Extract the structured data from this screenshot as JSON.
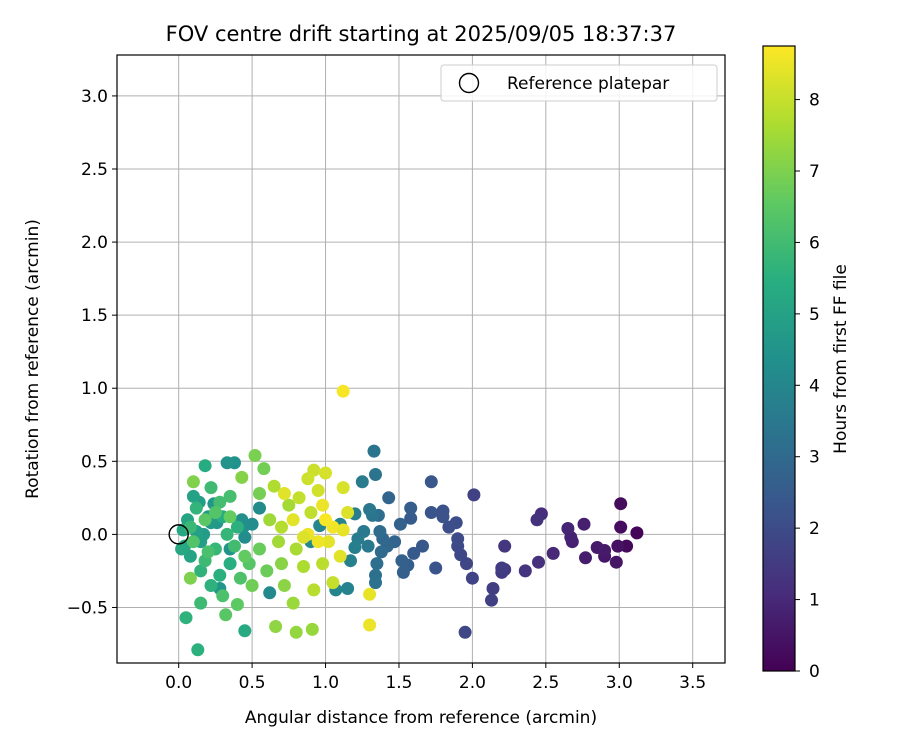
{
  "chart_data": {
    "type": "scatter",
    "title": "FOV centre drift starting at 2025/09/05 18:37:37",
    "xlabel": "Angular distance from reference (arcmin)",
    "ylabel": "Rotation from reference (arcmin)",
    "xlim": [
      -0.42,
      3.72
    ],
    "ylim": [
      -0.88,
      3.28
    ],
    "x_ticks": [
      0.0,
      0.5,
      1.0,
      1.5,
      2.0,
      2.5,
      3.0,
      3.5
    ],
    "x_tick_labels": [
      "0.0",
      "0.5",
      "1.0",
      "1.5",
      "2.0",
      "2.5",
      "3.0",
      "3.5"
    ],
    "y_ticks": [
      -0.5,
      0.0,
      0.5,
      1.0,
      1.5,
      2.0,
      2.5,
      3.0
    ],
    "y_tick_labels": [
      "−0.5",
      "0.0",
      "0.5",
      "1.0",
      "1.5",
      "2.0",
      "2.5",
      "3.0"
    ],
    "grid": true,
    "legend": {
      "position": "upper-right",
      "entries": [
        {
          "label": "Reference platepar",
          "marker": "open-circle",
          "x": 0.0,
          "y": 0.0
        }
      ]
    },
    "colorbar": {
      "label": "Hours from first FF file",
      "range": [
        0,
        8.75
      ],
      "ticks": [
        0,
        1,
        2,
        3,
        4,
        5,
        6,
        7,
        8
      ],
      "tick_labels": [
        "0",
        "1",
        "2",
        "3",
        "4",
        "5",
        "6",
        "7",
        "8"
      ],
      "colormap": "viridis",
      "colormap_stops": [
        "#440154",
        "#472d7b",
        "#3b528b",
        "#2c728e",
        "#21918c",
        "#28ae80",
        "#5ec962",
        "#addc30",
        "#fde725"
      ]
    },
    "series": [
      {
        "points": [
          [
            3.12,
            0.01,
            0.1
          ],
          [
            3.05,
            -0.08,
            0.2
          ],
          [
            3.01,
            0.05,
            0.3
          ],
          [
            3.01,
            0.21,
            0.25
          ],
          [
            2.99,
            -0.08,
            0.4
          ],
          [
            2.98,
            -0.19,
            0.5
          ],
          [
            2.9,
            -0.15,
            0.55
          ],
          [
            2.9,
            -0.11,
            0.6
          ],
          [
            2.85,
            -0.09,
            0.65
          ],
          [
            2.77,
            -0.16,
            0.7
          ],
          [
            2.76,
            0.07,
            0.75
          ],
          [
            2.68,
            -0.05,
            0.8
          ],
          [
            2.67,
            -0.02,
            0.85
          ],
          [
            2.65,
            0.04,
            0.9
          ],
          [
            2.55,
            -0.13,
            1.0
          ],
          [
            2.47,
            0.14,
            1.1
          ],
          [
            2.45,
            -0.19,
            1.2
          ],
          [
            2.44,
            0.1,
            1.25
          ],
          [
            2.36,
            -0.25,
            1.3
          ],
          [
            2.22,
            -0.08,
            1.4
          ],
          [
            2.22,
            -0.24,
            1.45
          ],
          [
            2.2,
            -0.26,
            1.5
          ],
          [
            2.2,
            -0.23,
            1.55
          ],
          [
            2.14,
            -0.37,
            1.6
          ],
          [
            2.13,
            -0.45,
            1.65
          ],
          [
            2.01,
            0.27,
            1.7
          ],
          [
            2.0,
            -0.3,
            1.75
          ],
          [
            1.96,
            -0.2,
            1.8
          ],
          [
            1.95,
            -0.67,
            1.85
          ],
          [
            1.92,
            -0.14,
            1.9
          ],
          [
            1.9,
            -0.08,
            1.95
          ],
          [
            1.9,
            -0.03,
            2.0
          ],
          [
            1.89,
            0.08,
            2.05
          ],
          [
            1.84,
            0.05,
            2.1
          ],
          [
            1.8,
            0.16,
            2.15
          ],
          [
            1.8,
            0.12,
            2.2
          ],
          [
            1.75,
            -0.23,
            2.25
          ],
          [
            1.72,
            0.15,
            2.3
          ],
          [
            1.72,
            0.36,
            2.35
          ],
          [
            1.66,
            -0.08,
            2.4
          ],
          [
            1.6,
            -0.13,
            2.45
          ],
          [
            1.58,
            0.11,
            2.5
          ],
          [
            1.58,
            0.18,
            2.55
          ],
          [
            1.56,
            -0.21,
            2.6
          ],
          [
            1.53,
            -0.26,
            2.65
          ],
          [
            1.52,
            -0.18,
            2.7
          ],
          [
            1.51,
            0.07,
            2.75
          ],
          [
            1.47,
            -0.05,
            2.8
          ],
          [
            1.43,
            0.25,
            2.85
          ],
          [
            1.42,
            -0.08,
            2.9
          ],
          [
            1.39,
            -0.03,
            2.95
          ],
          [
            1.38,
            -0.12,
            3.0
          ],
          [
            1.37,
            0.02,
            3.05
          ],
          [
            1.36,
            0.13,
            3.1
          ],
          [
            1.35,
            -0.2,
            3.15
          ],
          [
            1.34,
            -0.28,
            3.2
          ],
          [
            1.34,
            -0.33,
            3.25
          ],
          [
            1.34,
            0.41,
            3.3
          ],
          [
            1.33,
            0.57,
            3.35
          ],
          [
            1.32,
            0.13,
            3.4
          ],
          [
            1.3,
            0.17,
            3.45
          ],
          [
            1.29,
            -0.08,
            3.5
          ],
          [
            1.26,
            0.02,
            3.55
          ],
          [
            1.25,
            0.36,
            3.6
          ],
          [
            1.22,
            -0.03,
            3.65
          ],
          [
            1.2,
            0.14,
            3.7
          ],
          [
            1.2,
            -0.09,
            3.75
          ],
          [
            1.17,
            -0.18,
            3.8
          ],
          [
            1.15,
            -0.37,
            3.85
          ],
          [
            1.1,
            0.07,
            3.9
          ],
          [
            1.07,
            -0.38,
            3.95
          ],
          [
            0.96,
            0.06,
            4.0
          ],
          [
            0.9,
            -0.05,
            4.05
          ],
          [
            0.62,
            -0.4,
            4.1
          ],
          [
            0.55,
            0.18,
            4.15
          ],
          [
            0.5,
            0.07,
            4.2
          ],
          [
            0.45,
            -0.02,
            4.25
          ],
          [
            0.44,
            0.05,
            4.3
          ],
          [
            0.43,
            0.1,
            4.35
          ],
          [
            0.38,
            0.49,
            4.4
          ],
          [
            0.35,
            -0.1,
            4.45
          ],
          [
            0.33,
            0.49,
            4.5
          ],
          [
            0.28,
            -0.37,
            4.55
          ],
          [
            0.26,
            0.08,
            4.6
          ],
          [
            0.24,
            0.21,
            4.65
          ],
          [
            0.22,
            0.08,
            4.7
          ],
          [
            0.2,
            0.12,
            4.75
          ],
          [
            0.17,
            0.0,
            4.8
          ],
          [
            0.15,
            -0.05,
            4.85
          ],
          [
            0.14,
            0.22,
            4.9
          ],
          [
            0.12,
            0.02,
            4.95
          ],
          [
            0.1,
            0.26,
            5.0
          ],
          [
            0.08,
            -0.15,
            5.05
          ],
          [
            0.06,
            0.1,
            5.1
          ],
          [
            0.04,
            -0.08,
            5.15
          ],
          [
            0.03,
            0.03,
            5.2
          ],
          [
            0.02,
            -0.1,
            5.25
          ],
          [
            0.45,
            -0.66,
            5.3
          ],
          [
            0.18,
            0.47,
            5.35
          ],
          [
            0.3,
            0.12,
            5.4
          ],
          [
            0.35,
            -0.2,
            5.45
          ],
          [
            0.28,
            -0.28,
            5.5
          ],
          [
            0.4,
            0.05,
            5.55
          ],
          [
            0.22,
            -0.35,
            5.6
          ],
          [
            0.15,
            -0.25,
            5.65
          ],
          [
            0.12,
            0.18,
            5.7
          ],
          [
            0.33,
            0.0,
            5.75
          ],
          [
            0.25,
            -0.1,
            5.8
          ],
          [
            0.08,
            0.05,
            5.85
          ],
          [
            0.18,
            -0.18,
            5.9
          ],
          [
            0.22,
            0.32,
            5.95
          ],
          [
            0.38,
            -0.08,
            6.0
          ],
          [
            0.05,
            -0.57,
            5.6
          ],
          [
            0.13,
            -0.79,
            5.55
          ],
          [
            0.15,
            -0.47,
            5.9
          ],
          [
            0.28,
            0.22,
            6.05
          ],
          [
            0.35,
            0.26,
            6.1
          ],
          [
            0.2,
            -0.12,
            6.15
          ],
          [
            0.3,
            -0.42,
            6.2
          ],
          [
            0.42,
            -0.3,
            6.25
          ],
          [
            0.1,
            -0.05,
            6.3
          ],
          [
            0.25,
            0.15,
            6.35
          ],
          [
            0.48,
            -0.2,
            6.4
          ],
          [
            0.32,
            -0.55,
            6.45
          ],
          [
            0.18,
            0.1,
            6.5
          ],
          [
            0.4,
            -0.48,
            6.55
          ],
          [
            0.45,
            -0.15,
            6.6
          ],
          [
            0.35,
            0.12,
            6.65
          ],
          [
            0.55,
            -0.1,
            6.7
          ],
          [
            0.6,
            -0.25,
            6.75
          ],
          [
            0.5,
            -0.35,
            6.8
          ],
          [
            0.58,
            0.45,
            6.85
          ],
          [
            0.55,
            0.28,
            6.9
          ],
          [
            0.52,
            0.54,
            6.95
          ],
          [
            0.08,
            -0.3,
            7.0
          ],
          [
            0.1,
            0.36,
            7.05
          ],
          [
            0.43,
            0.39,
            7.1
          ],
          [
            0.7,
            -0.2,
            7.15
          ],
          [
            0.72,
            -0.35,
            7.2
          ],
          [
            0.66,
            -0.63,
            7.25
          ],
          [
            0.8,
            -0.67,
            7.3
          ],
          [
            0.91,
            -0.65,
            7.35
          ],
          [
            0.78,
            -0.47,
            7.4
          ],
          [
            0.62,
            0.1,
            7.45
          ],
          [
            0.68,
            -0.05,
            7.5
          ],
          [
            0.75,
            0.2,
            7.55
          ],
          [
            0.8,
            -0.1,
            7.6
          ],
          [
            0.85,
            -0.22,
            7.65
          ],
          [
            0.65,
            0.33,
            7.7
          ],
          [
            0.7,
            0.05,
            7.75
          ],
          [
            0.92,
            -0.38,
            7.8
          ],
          [
            0.98,
            -0.2,
            7.85
          ],
          [
            0.9,
            0.15,
            7.9
          ],
          [
            0.82,
            0.25,
            7.95
          ],
          [
            1.05,
            -0.33,
            8.0
          ],
          [
            0.92,
            0.44,
            8.05
          ],
          [
            0.88,
            0.38,
            8.1
          ],
          [
            0.95,
            0.3,
            8.15
          ],
          [
            1.0,
            0.42,
            8.2
          ],
          [
            1.12,
            0.32,
            8.25
          ],
          [
            1.15,
            0.15,
            8.3
          ],
          [
            1.1,
            -0.15,
            8.35
          ],
          [
            1.02,
            -0.05,
            8.4
          ],
          [
            1.3,
            -0.41,
            8.45
          ],
          [
            1.3,
            -0.62,
            8.5
          ],
          [
            1.12,
            0.98,
            8.65
          ],
          [
            0.95,
            -0.05,
            8.55
          ],
          [
            1.05,
            0.05,
            8.6
          ],
          [
            0.88,
            0.0,
            8.5
          ],
          [
            0.78,
            0.1,
            8.4
          ],
          [
            1.12,
            0.03,
            8.45
          ],
          [
            0.72,
            0.28,
            8.35
          ],
          [
            0.98,
            0.2,
            8.5
          ],
          [
            0.85,
            -0.02,
            8.3
          ],
          [
            1.0,
            0.1,
            8.7
          ]
        ]
      }
    ]
  }
}
